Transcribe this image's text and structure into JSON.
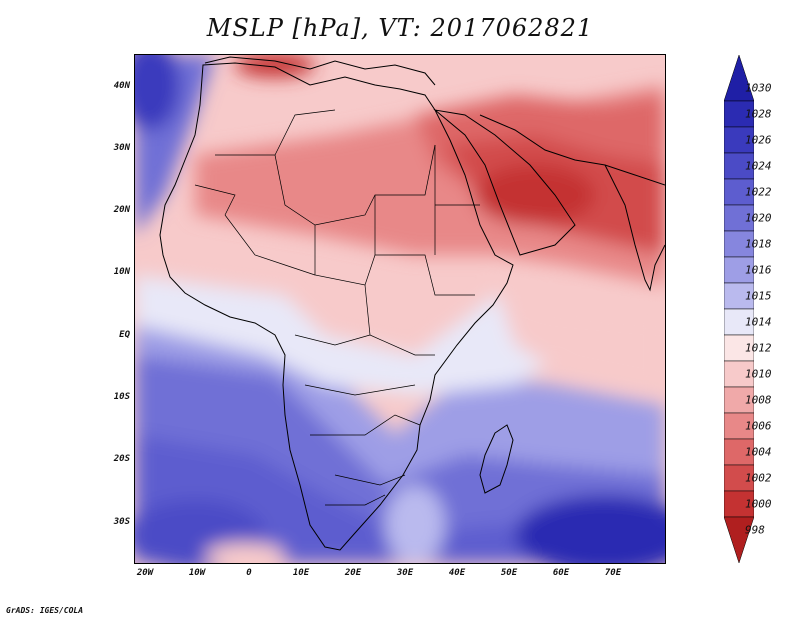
{
  "title": "MSLP [hPa], VT: 2017062821",
  "footer": "GrADS: IGES/COLA",
  "lat_ticks": [
    "40N",
    "30N",
    "20N",
    "10N",
    "EQ",
    "10S",
    "20S",
    "30S"
  ],
  "lon_ticks": [
    "20W",
    "10W",
    "0",
    "10E",
    "20E",
    "30E",
    "40E",
    "50E",
    "60E",
    "70E"
  ],
  "colorbar": {
    "labels": [
      "1030",
      "1028",
      "1026",
      "1024",
      "1022",
      "1020",
      "1018",
      "1016",
      "1015",
      "1014",
      "1012",
      "1010",
      "1008",
      "1006",
      "1004",
      "1002",
      "1000",
      "998"
    ],
    "colors": [
      "#1f1fa6",
      "#2b2bb2",
      "#3a3abd",
      "#4b4bc6",
      "#5d5dcf",
      "#7070d6",
      "#8686de",
      "#9e9ee6",
      "#babaee",
      "#e8e8f8",
      "#fbe6e6",
      "#f7caca",
      "#f0a9a9",
      "#e88888",
      "#de6868",
      "#d24c4c",
      "#c43232",
      "#b01f1f"
    ]
  }
}
